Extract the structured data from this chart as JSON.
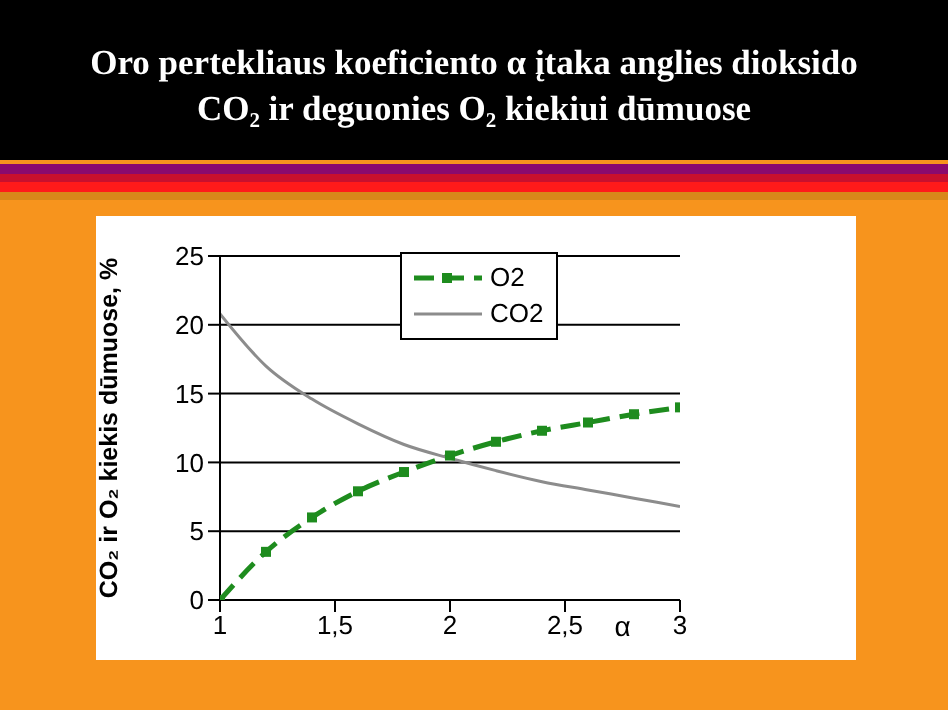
{
  "chart_data": {
    "type": "line",
    "title": "Oro pertekliaus koeficiento α įtaka anglies dioksido CO₂ ir deguonies O₂ kiekiui dūmuose",
    "xlabel": "α",
    "ylabel": "CO₂ ir O₂ kiekis dūmuose, %",
    "x": [
      1,
      1.2,
      1.4,
      1.6,
      1.8,
      2,
      2.2,
      2.4,
      2.6,
      2.8,
      3
    ],
    "series": [
      {
        "name": "O2",
        "color": "#1e8c1e",
        "marker": "square",
        "line_style": "dashed",
        "values": [
          0,
          3.5,
          6,
          7.9,
          9.3,
          10.5,
          11.5,
          12.3,
          12.9,
          13.5,
          14
        ]
      },
      {
        "name": "CO2",
        "color": "#8c8c8c",
        "marker": "none",
        "line_style": "solid",
        "values": [
          20.8,
          17,
          14.6,
          12.8,
          11.3,
          10.3,
          9.4,
          8.6,
          8,
          7.4,
          6.8
        ]
      }
    ],
    "xlim": [
      1,
      3
    ],
    "xticks": [
      1,
      {
        "value": 1.5,
        "label": "1,5"
      },
      2,
      {
        "value": 2.5,
        "label": "2,5"
      },
      3
    ],
    "ylim": [
      0,
      25
    ],
    "yticks": [
      0,
      5,
      10,
      15,
      20,
      25
    ],
    "grid": "y",
    "legend": "top"
  }
}
